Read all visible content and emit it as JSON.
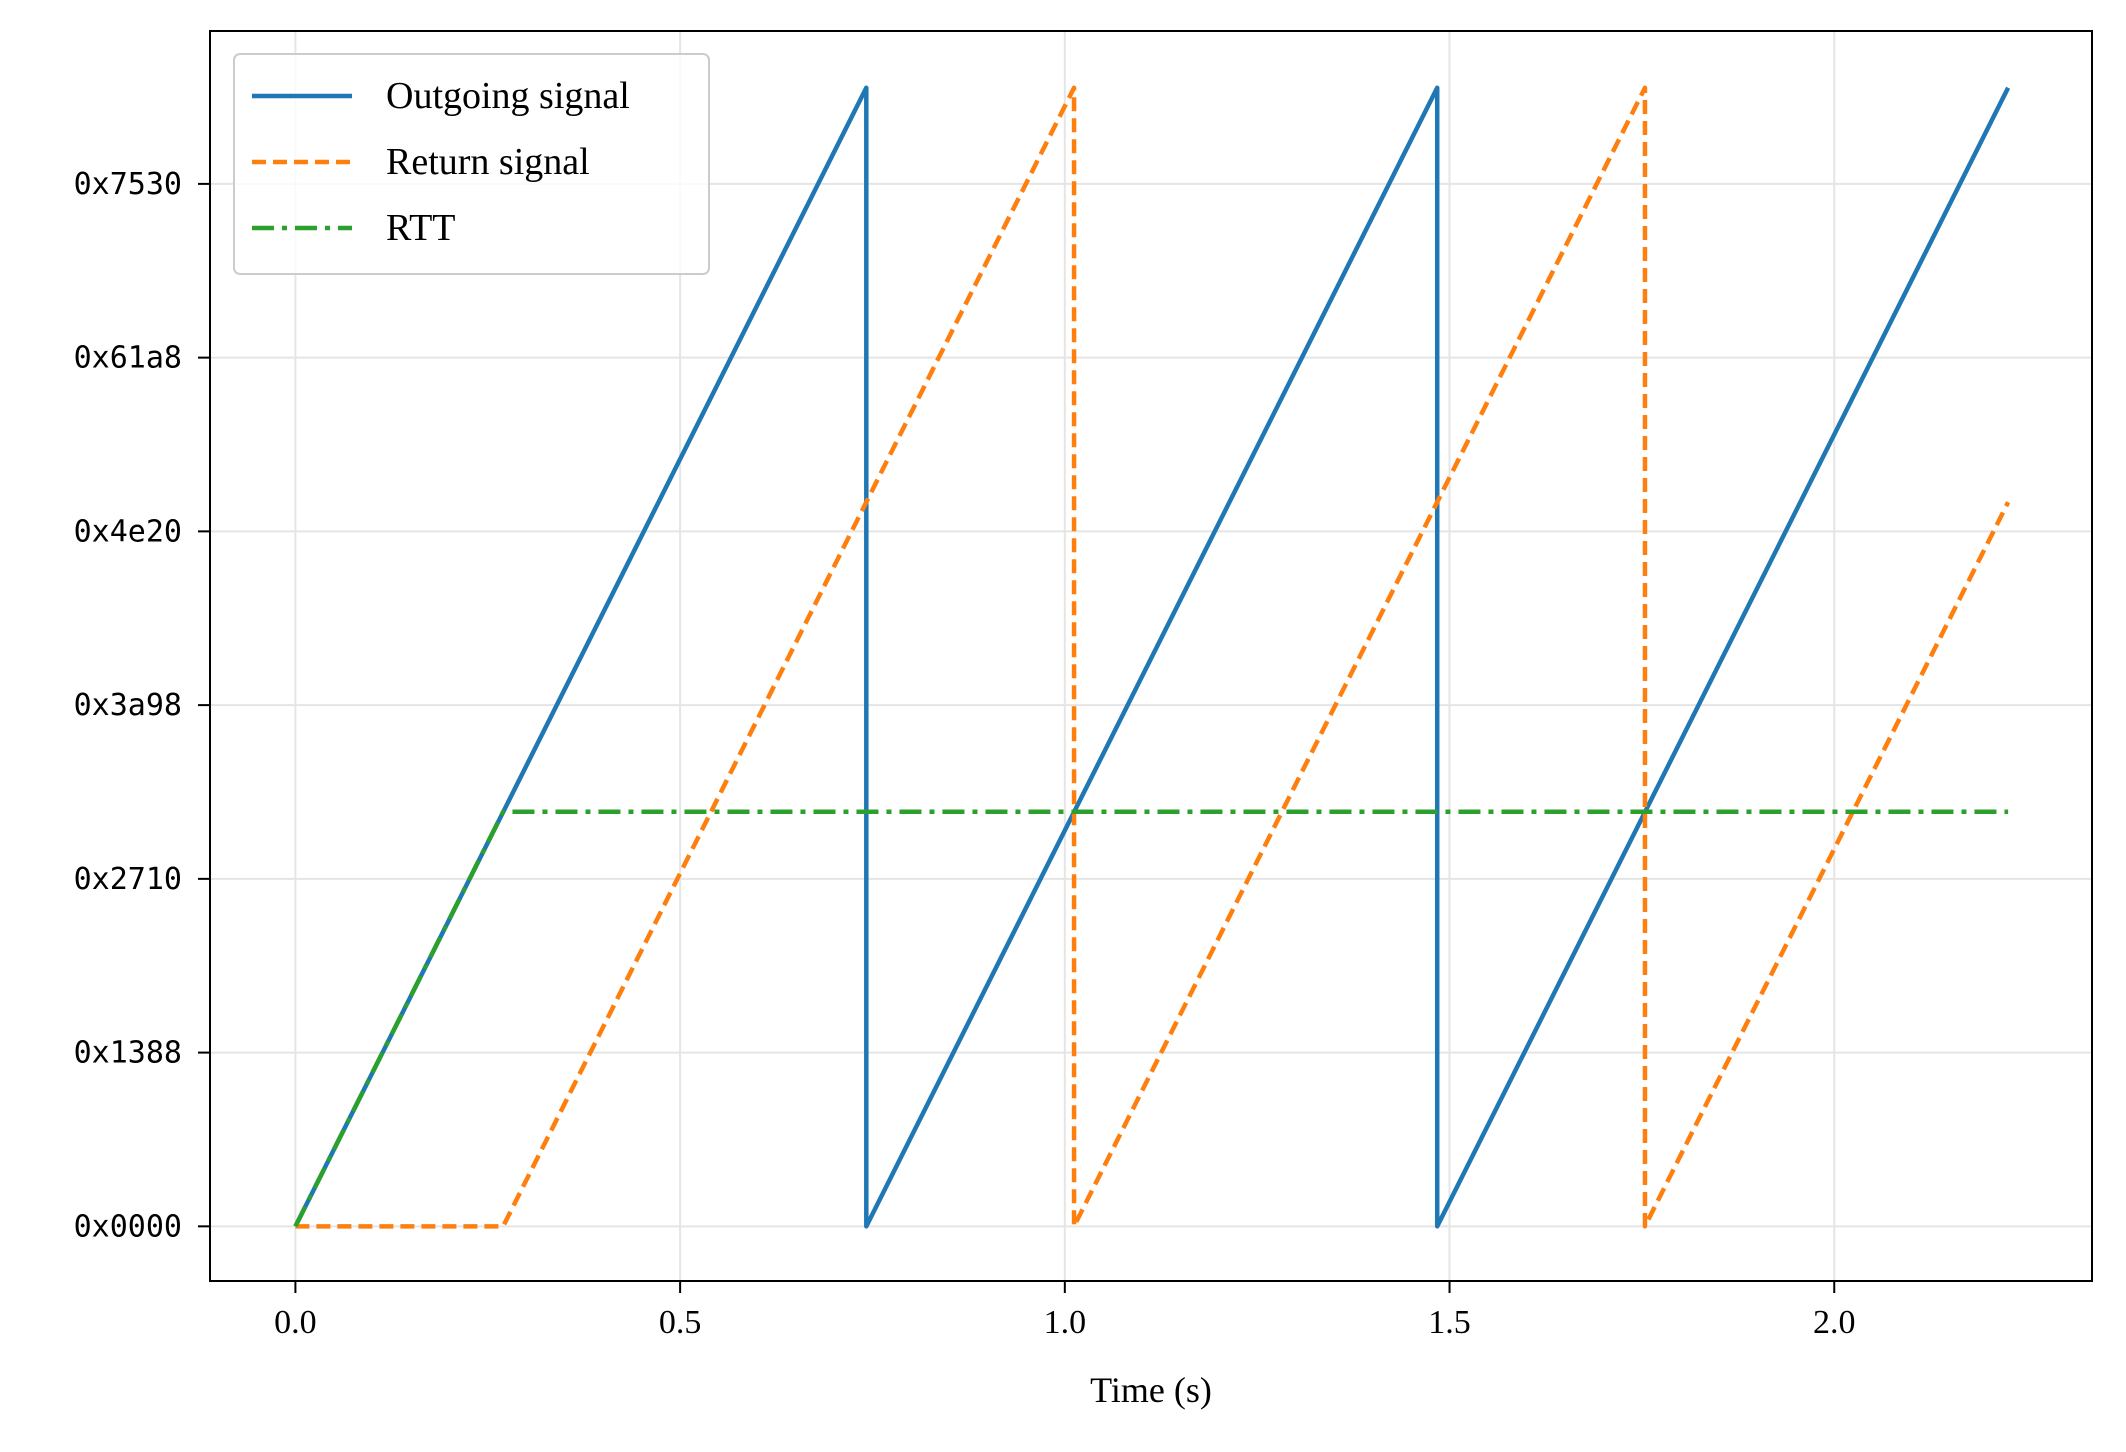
{
  "chart_data": {
    "type": "line",
    "xlabel": "Time (s)",
    "ylabel": "",
    "xlim": [
      -0.111,
      2.335
    ],
    "ylim": [
      -1573,
      34400
    ],
    "x_ticks": [
      {
        "value": 0.0,
        "label": "0.0"
      },
      {
        "value": 0.5,
        "label": "0.5"
      },
      {
        "value": 1.0,
        "label": "1.0"
      },
      {
        "value": 1.5,
        "label": "1.5"
      },
      {
        "value": 2.0,
        "label": "2.0"
      }
    ],
    "y_ticks": [
      {
        "value": 0,
        "label": "0x0000"
      },
      {
        "value": 5000,
        "label": "0x1388"
      },
      {
        "value": 10000,
        "label": "0x2710"
      },
      {
        "value": 15000,
        "label": "0x3a98"
      },
      {
        "value": 20000,
        "label": "0x4e20"
      },
      {
        "value": 25000,
        "label": "0x61a8"
      },
      {
        "value": 30000,
        "label": "0x7530"
      }
    ],
    "grid": true,
    "legend_position": "top-left",
    "series": [
      {
        "name": "Outgoing signal",
        "color": "#1f77b4",
        "style": "solid",
        "points": [
          [
            0.0,
            0
          ],
          [
            0.742,
            32767
          ],
          [
            0.742,
            0
          ],
          [
            1.484,
            32767
          ],
          [
            1.484,
            0
          ],
          [
            2.226,
            32767
          ]
        ]
      },
      {
        "name": "Return signal",
        "color": "#ff7f0e",
        "style": "dashed",
        "points": [
          [
            0.0,
            0
          ],
          [
            0.27,
            0
          ],
          [
            1.012,
            32767
          ],
          [
            1.012,
            0
          ],
          [
            1.754,
            32767
          ],
          [
            1.754,
            0
          ],
          [
            2.226,
            20840
          ]
        ]
      },
      {
        "name": "RTT",
        "color": "#2ca02c",
        "style": "dashdot",
        "points": [
          [
            0.0,
            0
          ],
          [
            0.27,
            11930
          ],
          [
            2.226,
            11930
          ]
        ]
      }
    ]
  }
}
